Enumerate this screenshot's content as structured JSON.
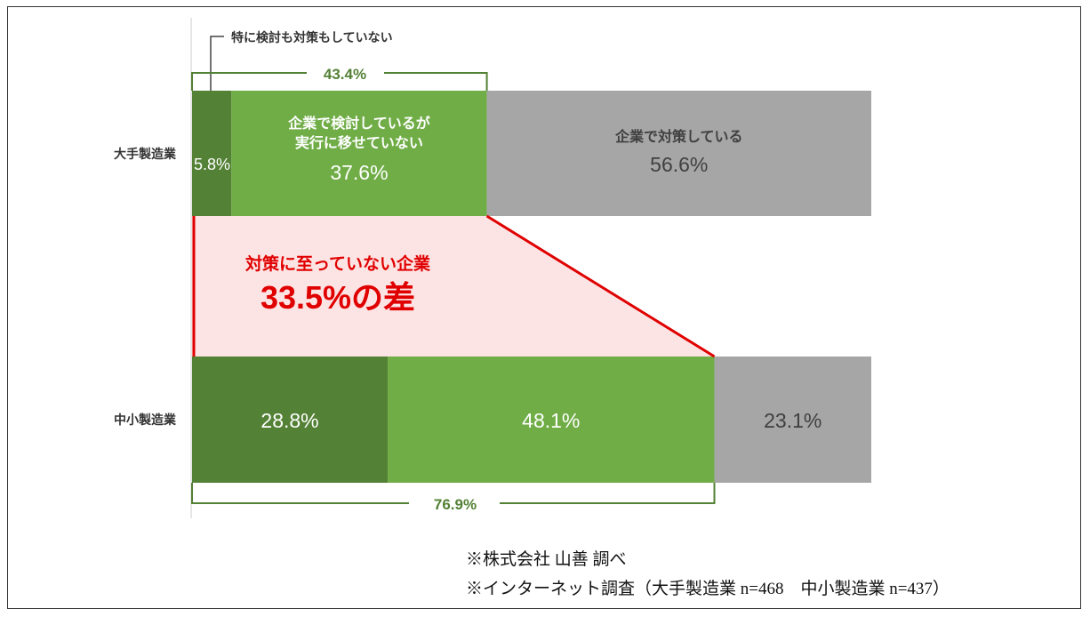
{
  "chart_data": {
    "type": "bar",
    "orientation": "horizontal",
    "stacked": true,
    "categories": [
      "大手製造業",
      "中小製造業"
    ],
    "series": [
      {
        "name": "特に検討も対策もしていない",
        "values": [
          5.8,
          28.8
        ],
        "color": "#538135"
      },
      {
        "name": "企業で検討しているが実行に移せていない",
        "values": [
          37.6,
          48.1
        ],
        "color": "#70ad47"
      },
      {
        "name": "企業で対策している",
        "values": [
          56.6,
          23.1
        ],
        "color": "#a6a6a6"
      }
    ],
    "labels": {
      "top_dark": "5.8%",
      "top_light": "37.6%",
      "top_gray": "56.6%",
      "bottom_dark": "28.8%",
      "bottom_light": "48.1%",
      "bottom_gray": "23.1%"
    },
    "top_light_label": [
      "企業で検討しているが",
      "実行に移せていない"
    ],
    "top_gray_label": "企業で対策している",
    "callout_dark": "特に検討も対策もしていない",
    "bracket_top": "43.4%",
    "bracket_bottom": "76.9%",
    "gap_label": "対策に至っていない企業",
    "gap_value": "33.5%の差",
    "accent": "#e00000",
    "xlim": [
      0,
      100
    ]
  },
  "notes": [
    "※株式会社 山善 調べ",
    "※インターネット調査（大手製造業 n=468　中小製造業 n=437）"
  ]
}
